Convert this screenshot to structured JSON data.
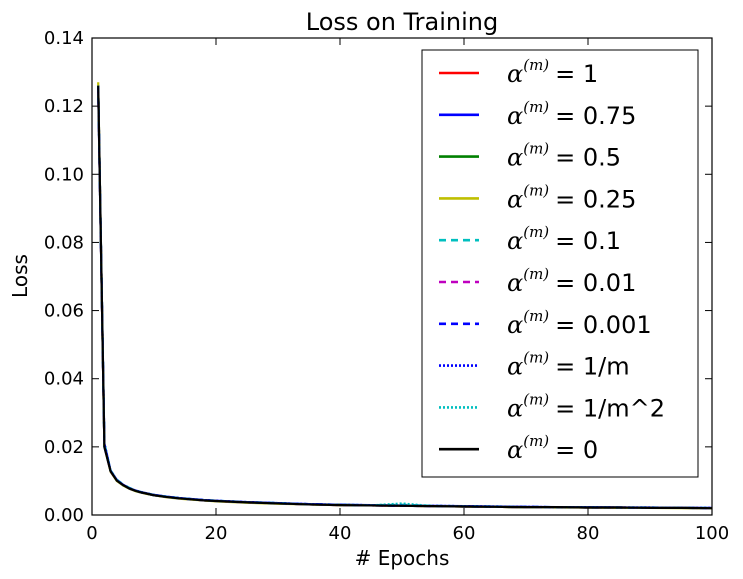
{
  "chart_data": {
    "type": "line",
    "title": "Loss on Training",
    "xlabel": "# Epochs",
    "ylabel": "Loss",
    "xlim": [
      0,
      100
    ],
    "ylim": [
      0,
      0.14
    ],
    "xticks": [
      0,
      20,
      40,
      60,
      80,
      100
    ],
    "xtick_labels": [
      "0",
      "20",
      "40",
      "60",
      "80",
      "100"
    ],
    "yticks": [
      0,
      0.02,
      0.04,
      0.06,
      0.08,
      0.1,
      0.12,
      0.14
    ],
    "ytick_labels": [
      "0.00",
      "0.02",
      "0.04",
      "0.06",
      "0.08",
      "0.10",
      "0.12",
      "0.14"
    ],
    "grid": false,
    "legend_position": "upper-right",
    "x": [
      1,
      2,
      3,
      4,
      5,
      6,
      7,
      8,
      9,
      10,
      12,
      14,
      16,
      18,
      20,
      25,
      30,
      35,
      40,
      45,
      50,
      55,
      60,
      65,
      70,
      75,
      80,
      85,
      90,
      95,
      100
    ],
    "series": [
      {
        "name": "α(m) = 1",
        "symbol": "α",
        "sup": "(m)",
        "value_label": "= 1",
        "color": "#ff0000",
        "style": "solid",
        "values": [
          0.126,
          0.02,
          0.0128,
          0.0102,
          0.0088,
          0.0078,
          0.0071,
          0.0066,
          0.0062,
          0.0058,
          0.0053,
          0.0049,
          0.0046,
          0.0043,
          0.0041,
          0.0037,
          0.0034,
          0.0031,
          0.0029,
          0.0028,
          0.0027,
          0.0026,
          0.0025,
          0.0024,
          0.0023,
          0.0023,
          0.0022,
          0.0022,
          0.0021,
          0.0021,
          0.002
        ]
      },
      {
        "name": "α(m) = 0.75",
        "symbol": "α",
        "sup": "(m)",
        "value_label": "= 0.75",
        "color": "#0000ff",
        "style": "solid",
        "values": [
          0.125,
          0.021,
          0.013,
          0.0103,
          0.0089,
          0.0079,
          0.0072,
          0.0067,
          0.0063,
          0.0059,
          0.0054,
          0.005,
          0.0047,
          0.0044,
          0.0042,
          0.0038,
          0.0035,
          0.0032,
          0.003,
          0.0029,
          0.0028,
          0.0027,
          0.0026,
          0.0025,
          0.0024,
          0.0023,
          0.0023,
          0.0022,
          0.0022,
          0.0021,
          0.0021
        ]
      },
      {
        "name": "α(m) = 0.5",
        "symbol": "α",
        "sup": "(m)",
        "value_label": "= 0.5",
        "color": "#008000",
        "style": "solid",
        "values": [
          0.126,
          0.02,
          0.0129,
          0.0101,
          0.0087,
          0.0078,
          0.0071,
          0.0066,
          0.0062,
          0.0058,
          0.0053,
          0.0049,
          0.0046,
          0.0043,
          0.0041,
          0.0037,
          0.0034,
          0.0031,
          0.003,
          0.0028,
          0.0027,
          0.0026,
          0.0025,
          0.0024,
          0.0023,
          0.0023,
          0.0022,
          0.0022,
          0.0021,
          0.0021,
          0.002
        ]
      },
      {
        "name": "α(m) = 0.25",
        "symbol": "α",
        "sup": "(m)",
        "value_label": "= 0.25",
        "color": "#bfbf00",
        "style": "solid",
        "values": [
          0.127,
          0.02,
          0.0127,
          0.01,
          0.0087,
          0.0077,
          0.007,
          0.0065,
          0.0061,
          0.0058,
          0.0052,
          0.0048,
          0.0045,
          0.0043,
          0.004,
          0.0036,
          0.0033,
          0.0031,
          0.0029,
          0.0028,
          0.0027,
          0.0026,
          0.0025,
          0.0024,
          0.0023,
          0.0022,
          0.0022,
          0.0021,
          0.0021,
          0.002,
          0.002
        ]
      },
      {
        "name": "α(m) = 0.1",
        "symbol": "α",
        "sup": "(m)",
        "value_label": "= 0.1",
        "color": "#00bfbf",
        "style": "dashed",
        "values": [
          0.126,
          0.021,
          0.0131,
          0.0104,
          0.009,
          0.008,
          0.0072,
          0.0067,
          0.0063,
          0.0059,
          0.0054,
          0.005,
          0.0047,
          0.0044,
          0.0042,
          0.0038,
          0.0035,
          0.0032,
          0.003,
          0.0029,
          0.003,
          0.0027,
          0.0026,
          0.0025,
          0.0024,
          0.0023,
          0.0023,
          0.0022,
          0.0022,
          0.0021,
          0.0021
        ]
      },
      {
        "name": "α(m) = 0.01",
        "symbol": "α",
        "sup": "(m)",
        "value_label": "= 0.01",
        "color": "#bf00bf",
        "style": "dashed",
        "values": [
          0.125,
          0.02,
          0.0128,
          0.0102,
          0.0088,
          0.0078,
          0.0071,
          0.0066,
          0.0062,
          0.0058,
          0.0053,
          0.0049,
          0.0046,
          0.0043,
          0.0041,
          0.0037,
          0.0034,
          0.0031,
          0.0029,
          0.0028,
          0.0027,
          0.0026,
          0.0025,
          0.0024,
          0.0023,
          0.0023,
          0.0022,
          0.0022,
          0.0021,
          0.0021,
          0.002
        ]
      },
      {
        "name": "α(m) = 0.001",
        "symbol": "α",
        "sup": "(m)",
        "value_label": "= 0.001",
        "color": "#0000ff",
        "style": "dashed",
        "values": [
          0.126,
          0.02,
          0.0129,
          0.0102,
          0.0088,
          0.0078,
          0.0071,
          0.0066,
          0.0062,
          0.0058,
          0.0053,
          0.0049,
          0.0046,
          0.0044,
          0.0041,
          0.0037,
          0.0034,
          0.0032,
          0.003,
          0.0028,
          0.0027,
          0.0026,
          0.0025,
          0.0024,
          0.0024,
          0.0023,
          0.0022,
          0.0022,
          0.0021,
          0.0021,
          0.002
        ]
      },
      {
        "name": "α(m) = 1/m",
        "symbol": "α",
        "sup": "(m)",
        "value_label": "= 1/m",
        "color": "#0000ff",
        "style": "dotted",
        "values": [
          0.126,
          0.021,
          0.013,
          0.0103,
          0.0089,
          0.0079,
          0.0072,
          0.0067,
          0.0063,
          0.0059,
          0.0054,
          0.005,
          0.0047,
          0.0044,
          0.0042,
          0.0038,
          0.0035,
          0.0032,
          0.003,
          0.0029,
          0.0028,
          0.0027,
          0.0026,
          0.0025,
          0.0024,
          0.0023,
          0.0023,
          0.0022,
          0.0022,
          0.0021,
          0.0021
        ]
      },
      {
        "name": "α(m) = 1/m^2",
        "symbol": "α",
        "sup": "(m)",
        "value_label": "= 1/m^2",
        "color": "#00bfbf",
        "style": "dotted",
        "values": [
          0.126,
          0.02,
          0.0129,
          0.0102,
          0.0088,
          0.0078,
          0.0071,
          0.0066,
          0.0062,
          0.0058,
          0.0053,
          0.0049,
          0.0046,
          0.0043,
          0.0041,
          0.0037,
          0.0034,
          0.0031,
          0.0029,
          0.0028,
          0.0034,
          0.0026,
          0.0025,
          0.0024,
          0.0023,
          0.0023,
          0.0022,
          0.0022,
          0.0021,
          0.0021,
          0.002
        ]
      },
      {
        "name": "α(m) = 0",
        "symbol": "α",
        "sup": "(m)",
        "value_label": "= 0",
        "color": "#000000",
        "style": "solid",
        "values": [
          0.126,
          0.02,
          0.0128,
          0.0101,
          0.0088,
          0.0078,
          0.0071,
          0.0066,
          0.0062,
          0.0058,
          0.0053,
          0.0049,
          0.0046,
          0.0043,
          0.0041,
          0.0037,
          0.0034,
          0.0031,
          0.0029,
          0.0028,
          0.0027,
          0.0026,
          0.0025,
          0.0024,
          0.0023,
          0.0023,
          0.0022,
          0.0022,
          0.0021,
          0.0021,
          0.002
        ]
      }
    ]
  }
}
